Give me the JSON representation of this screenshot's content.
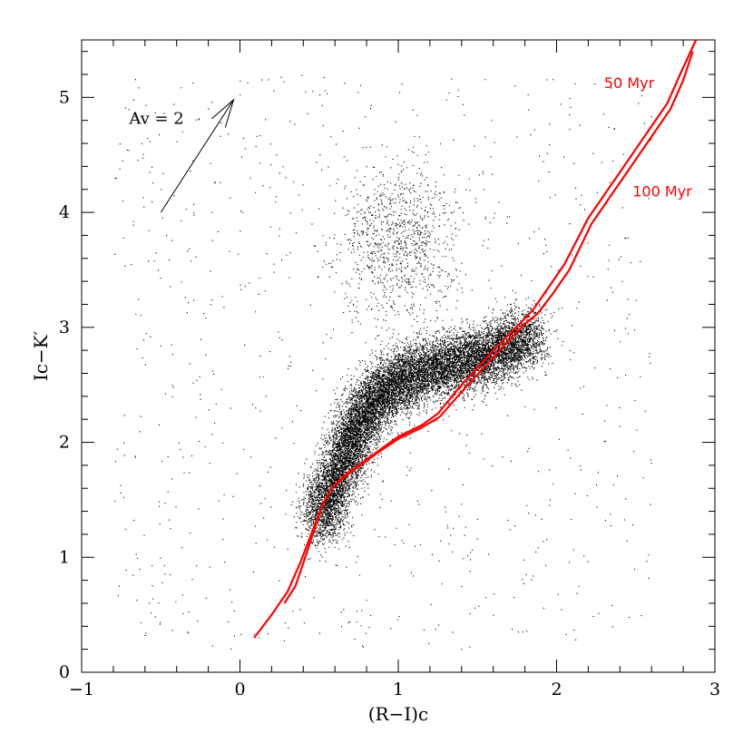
{
  "chart_data": {
    "type": "scatter",
    "title": "",
    "xlabel": "(R−I)c",
    "ylabel": "Ic−K′",
    "xlim": [
      -1,
      3
    ],
    "ylim": [
      0,
      5.5
    ],
    "x_major_ticks": [
      -1,
      0,
      1,
      2,
      3
    ],
    "y_major_ticks": [
      0,
      1,
      2,
      3,
      4,
      5
    ],
    "x_tick_labels": [
      "−1",
      "0",
      "1",
      "2",
      "3"
    ],
    "y_tick_labels": [
      "0",
      "1",
      "2",
      "3",
      "4",
      "5"
    ],
    "x_minor_step": 0.2,
    "y_minor_step": 0.2,
    "grid": false,
    "point_color": "#000000",
    "point_distribution": [
      {
        "component": "main-locus",
        "count": 14000,
        "path_x": [
          0.5,
          0.58,
          0.68,
          0.78,
          0.9,
          1.05,
          1.25,
          1.45,
          1.65,
          1.85
        ],
        "path_y": [
          1.3,
          1.6,
          1.95,
          2.25,
          2.45,
          2.58,
          2.65,
          2.72,
          2.8,
          2.95
        ],
        "spread_x": 0.07,
        "spread_y": 0.13
      },
      {
        "component": "upper-clump",
        "count": 1000,
        "center_x": 1.0,
        "center_y": 3.7,
        "spread_x": 0.18,
        "spread_y": 0.35
      },
      {
        "component": "background",
        "count": 900,
        "x_range": [
          -0.8,
          2.6
        ],
        "y_range": [
          0.2,
          5.2
        ]
      }
    ],
    "isochrones": [
      {
        "name": "50 Myr",
        "color": "#ff0000",
        "x": [
          0.09,
          0.2,
          0.3,
          0.38,
          0.45,
          0.52,
          0.58,
          0.65,
          0.75,
          0.85,
          1.0,
          1.15,
          1.25,
          1.4,
          1.6,
          1.78,
          1.85,
          1.95,
          2.05,
          2.2,
          2.4,
          2.6,
          2.7,
          2.78,
          2.88
        ],
        "y": [
          0.3,
          0.5,
          0.7,
          0.95,
          1.2,
          1.45,
          1.6,
          1.7,
          1.8,
          1.9,
          2.05,
          2.15,
          2.25,
          2.5,
          2.8,
          3.05,
          3.15,
          3.35,
          3.55,
          3.95,
          4.35,
          4.75,
          4.95,
          5.2,
          5.5
        ]
      },
      {
        "name": "100 Myr",
        "color": "#ff0000",
        "x": [
          0.28,
          0.35,
          0.4,
          0.46,
          0.52,
          0.58,
          0.66,
          0.76,
          0.86,
          1.0,
          1.15,
          1.26,
          1.42,
          1.62,
          1.8,
          1.88,
          1.98,
          2.08,
          2.22,
          2.42,
          2.62,
          2.72,
          2.8,
          2.86
        ],
        "y": [
          0.6,
          0.75,
          0.95,
          1.2,
          1.45,
          1.6,
          1.7,
          1.8,
          1.9,
          2.03,
          2.13,
          2.22,
          2.47,
          2.77,
          3.03,
          3.12,
          3.3,
          3.5,
          3.9,
          4.3,
          4.7,
          4.9,
          5.15,
          5.4
        ]
      }
    ],
    "annotations": [
      {
        "text": "50 Myr",
        "x": 2.3,
        "y": 5.08,
        "color": "#ff0000"
      },
      {
        "text": "100 Myr",
        "x": 2.48,
        "y": 4.14,
        "color": "#ff0000"
      },
      {
        "text": "Av = 2",
        "x": -0.7,
        "y": 4.77,
        "color": "#000000"
      }
    ],
    "reddening_vector": {
      "label": "Av = 2",
      "x0": -0.5,
      "y0": 4.0,
      "x1": -0.04,
      "y1": 4.98
    }
  }
}
